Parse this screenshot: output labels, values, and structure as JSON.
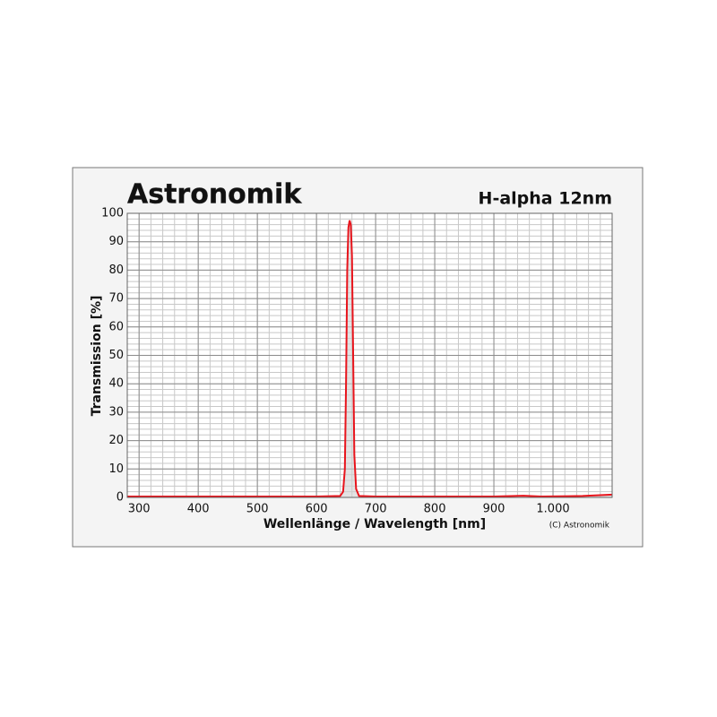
{
  "chart_data": {
    "type": "line",
    "logo": "Astronomik",
    "title": "H-alpha 12nm",
    "xlabel": "Wellenlänge / Wavelength [nm]",
    "ylabel": "Transmission [%]",
    "copyright": "(C) Astronomik",
    "series": [
      {
        "color": "#e8141c",
        "x": [
          280,
          600,
          640,
          645,
          648,
          650,
          652,
          654,
          656,
          658,
          660,
          662,
          664,
          667,
          672,
          700,
          900,
          950,
          980,
          1050,
          1100
        ],
        "values": [
          0.3,
          0.3,
          0.5,
          2,
          10,
          40,
          80,
          95,
          97.5,
          96,
          85,
          50,
          15,
          3,
          0.5,
          0.3,
          0.3,
          0.6,
          0.3,
          0.5,
          1
        ]
      }
    ],
    "xlim": [
      280,
      1100
    ],
    "ylim": [
      0,
      100
    ],
    "xticks": [
      300,
      400,
      500,
      600,
      700,
      800,
      900,
      {
        "value": 1000,
        "label": "1.000"
      }
    ],
    "yticks": [
      0,
      10,
      20,
      30,
      40,
      50,
      60,
      70,
      80,
      90,
      100
    ],
    "grid": true,
    "minor_grid": true
  }
}
